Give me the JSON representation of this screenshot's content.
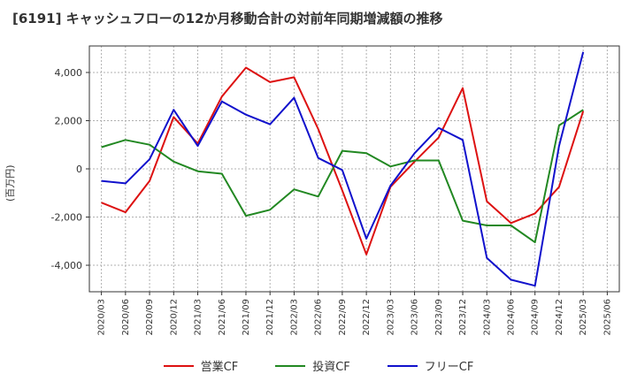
{
  "title": "[6191]  キャッシュフローの12か月移動合計の対前年同期増減額の推移",
  "chart_data": {
    "type": "line",
    "title": "[6191]  キャッシュフローの12か月移動合計の対前年同期増減額の推移",
    "xlabel": "",
    "ylabel": "(百万円)",
    "ylim": [
      -5100,
      5100
    ],
    "yticks": [
      -4000,
      -2000,
      0,
      2000,
      4000
    ],
    "ytick_labels": [
      "-4,000",
      "-2,000",
      "0",
      "2,000",
      "4,000"
    ],
    "grid": true,
    "legend_position": "bottom",
    "categories": [
      "2020/03",
      "2020/06",
      "2020/09",
      "2020/12",
      "2021/03",
      "2021/06",
      "2021/09",
      "2021/12",
      "2022/03",
      "2022/06",
      "2022/09",
      "2022/12",
      "2023/03",
      "2023/06",
      "2023/09",
      "2023/12",
      "2024/03",
      "2024/06",
      "2024/09",
      "2024/12",
      "2025/03",
      "2025/06"
    ],
    "series": [
      {
        "name": "営業CF",
        "color": "#dd1111",
        "values": [
          -1400,
          -1800,
          -500,
          2150,
          1050,
          3000,
          4200,
          3600,
          3800,
          1650,
          -900,
          -3550,
          -750,
          300,
          1300,
          3350,
          -1350,
          -2250,
          -1850,
          -750,
          2400,
          null
        ]
      },
      {
        "name": "投資CF",
        "color": "#228822",
        "values": [
          900,
          1200,
          1000,
          300,
          -100,
          -200,
          -1950,
          -1700,
          -850,
          -1150,
          750,
          650,
          100,
          350,
          350,
          -2150,
          -2350,
          -2350,
          -3050,
          1800,
          2450,
          null
        ]
      },
      {
        "name": "フリーCF",
        "color": "#1111cc",
        "values": [
          -500,
          -600,
          400,
          2450,
          950,
          2800,
          2250,
          1850,
          2950,
          450,
          -50,
          -2900,
          -700,
          650,
          1700,
          1200,
          -3700,
          -4600,
          -4850,
          950,
          4850,
          null
        ]
      }
    ]
  }
}
